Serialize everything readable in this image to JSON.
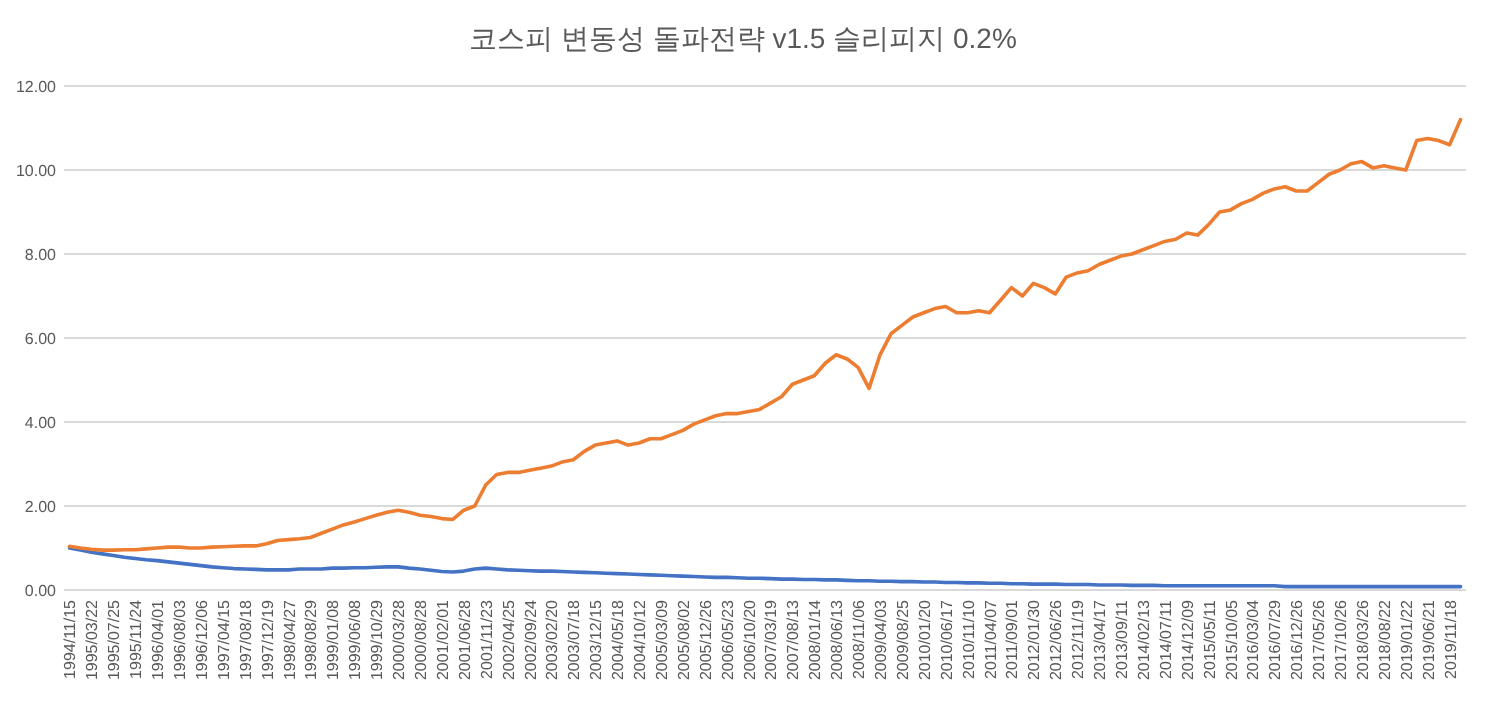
{
  "chart_data": {
    "type": "line",
    "title": "코스피 변동성 돌파전략 v1.5 슬리피지 0.2%",
    "categories": [
      "1994/11/15",
      null,
      "1995/03/22",
      null,
      "1995/07/25",
      null,
      "1995/11/24",
      null,
      "1996/04/01",
      null,
      "1996/08/03",
      null,
      "1996/12/06",
      null,
      "1997/04/15",
      null,
      "1997/08/18",
      null,
      "1997/12/19",
      null,
      "1998/04/27",
      null,
      "1998/08/29",
      null,
      "1999/01/08",
      null,
      "1999/06/08",
      null,
      "1999/10/29",
      null,
      "2000/03/28",
      null,
      "2000/08/28",
      null,
      "2001/02/01",
      null,
      "2001/06/28",
      null,
      "2001/11/23",
      null,
      "2002/04/25",
      null,
      "2002/09/24",
      null,
      "2003/02/20",
      null,
      "2003/07/18",
      null,
      "2003/12/15",
      null,
      "2004/05/18",
      null,
      "2004/10/12",
      null,
      "2005/03/09",
      null,
      "2005/08/02",
      null,
      "2005/12/26",
      null,
      "2006/05/23",
      null,
      "2006/10/20",
      null,
      "2007/03/19",
      null,
      "2007/08/13",
      null,
      "2008/01/14",
      null,
      "2008/06/13",
      null,
      "2008/11/06",
      null,
      "2009/04/03",
      null,
      "2009/08/25",
      null,
      "2010/01/20",
      null,
      "2010/06/17",
      null,
      "2010/11/10",
      null,
      "2011/04/07",
      null,
      "2011/09/01",
      null,
      "2012/01/30",
      null,
      "2012/06/26",
      null,
      "2012/11/19",
      null,
      "2013/04/17",
      null,
      "2013/09/11",
      null,
      "2014/02/13",
      null,
      "2014/07/11",
      null,
      "2014/12/09",
      null,
      "2015/05/11",
      null,
      "2015/10/05",
      null,
      "2016/03/04",
      null,
      "2016/07/29",
      null,
      "2016/12/26",
      null,
      "2017/05/26",
      null,
      "2017/10/26",
      null,
      "2018/03/26",
      null,
      "2018/08/22",
      null,
      "2019/01/22",
      null,
      "2019/06/21",
      null,
      "2019/11/18",
      null
    ],
    "series": [
      {
        "color": "#4472c4",
        "values": [
          1.0,
          0.95,
          0.9,
          0.86,
          0.82,
          0.78,
          0.75,
          0.72,
          0.7,
          0.67,
          0.64,
          0.61,
          0.58,
          0.55,
          0.53,
          0.51,
          0.5,
          0.49,
          0.48,
          0.48,
          0.48,
          0.5,
          0.5,
          0.5,
          0.52,
          0.52,
          0.53,
          0.53,
          0.54,
          0.55,
          0.55,
          0.52,
          0.5,
          0.47,
          0.44,
          0.43,
          0.45,
          0.5,
          0.52,
          0.5,
          0.48,
          0.47,
          0.46,
          0.45,
          0.45,
          0.44,
          0.43,
          0.42,
          0.41,
          0.4,
          0.39,
          0.38,
          0.37,
          0.36,
          0.35,
          0.34,
          0.33,
          0.32,
          0.31,
          0.3,
          0.3,
          0.29,
          0.28,
          0.28,
          0.27,
          0.26,
          0.26,
          0.25,
          0.25,
          0.24,
          0.24,
          0.23,
          0.22,
          0.22,
          0.21,
          0.21,
          0.2,
          0.2,
          0.19,
          0.19,
          0.18,
          0.18,
          0.17,
          0.17,
          0.16,
          0.16,
          0.15,
          0.15,
          0.14,
          0.14,
          0.14,
          0.13,
          0.13,
          0.13,
          0.12,
          0.12,
          0.12,
          0.11,
          0.11,
          0.11,
          0.1,
          0.1,
          0.1,
          0.1,
          0.1,
          0.1,
          0.1,
          0.1,
          0.1,
          0.1,
          0.1,
          0.08,
          0.08,
          0.08,
          0.08,
          0.08,
          0.08,
          0.08,
          0.08,
          0.08,
          0.08,
          0.08,
          0.08,
          0.08,
          0.08,
          0.08,
          0.08,
          0.08
        ]
      },
      {
        "color": "#ed7d31",
        "values": [
          1.04,
          1.0,
          0.97,
          0.95,
          0.95,
          0.96,
          0.96,
          0.98,
          1.0,
          1.02,
          1.02,
          1.0,
          1.0,
          1.02,
          1.03,
          1.04,
          1.05,
          1.05,
          1.1,
          1.18,
          1.2,
          1.22,
          1.25,
          1.35,
          1.45,
          1.55,
          1.62,
          1.7,
          1.78,
          1.85,
          1.9,
          1.85,
          1.78,
          1.75,
          1.7,
          1.68,
          1.9,
          2.0,
          2.5,
          2.75,
          2.8,
          2.8,
          2.85,
          2.9,
          2.95,
          3.05,
          3.1,
          3.3,
          3.45,
          3.5,
          3.55,
          3.45,
          3.5,
          3.6,
          3.6,
          3.7,
          3.8,
          3.95,
          4.05,
          4.15,
          4.2,
          4.2,
          4.25,
          4.3,
          4.45,
          4.6,
          4.9,
          5.0,
          5.1,
          5.4,
          5.6,
          5.5,
          5.3,
          4.8,
          5.6,
          6.1,
          6.3,
          6.5,
          6.6,
          6.7,
          6.75,
          6.6,
          6.6,
          6.65,
          6.6,
          6.9,
          7.2,
          7.0,
          7.3,
          7.2,
          7.05,
          7.45,
          7.55,
          7.6,
          7.75,
          7.85,
          7.95,
          8.0,
          8.1,
          8.2,
          8.3,
          8.35,
          8.5,
          8.45,
          8.7,
          9.0,
          9.05,
          9.2,
          9.3,
          9.45,
          9.55,
          9.6,
          9.5,
          9.5,
          9.7,
          9.9,
          10.0,
          10.15,
          10.2,
          10.05,
          10.1,
          10.05,
          10.0,
          10.7,
          10.75,
          10.7,
          10.6,
          11.2
        ]
      }
    ],
    "ylim": [
      0,
      12
    ],
    "yticks": [
      {
        "value": 0,
        "label": "0.00"
      },
      {
        "value": 2,
        "label": "2.00"
      },
      {
        "value": 4,
        "label": "4.00"
      },
      {
        "value": 6,
        "label": "6.00"
      },
      {
        "value": 8,
        "label": "8.00"
      },
      {
        "value": 10,
        "label": "10.00"
      },
      {
        "value": 12,
        "label": "12.00"
      }
    ],
    "grid": "y",
    "marker": "none",
    "line_style": "solid"
  }
}
